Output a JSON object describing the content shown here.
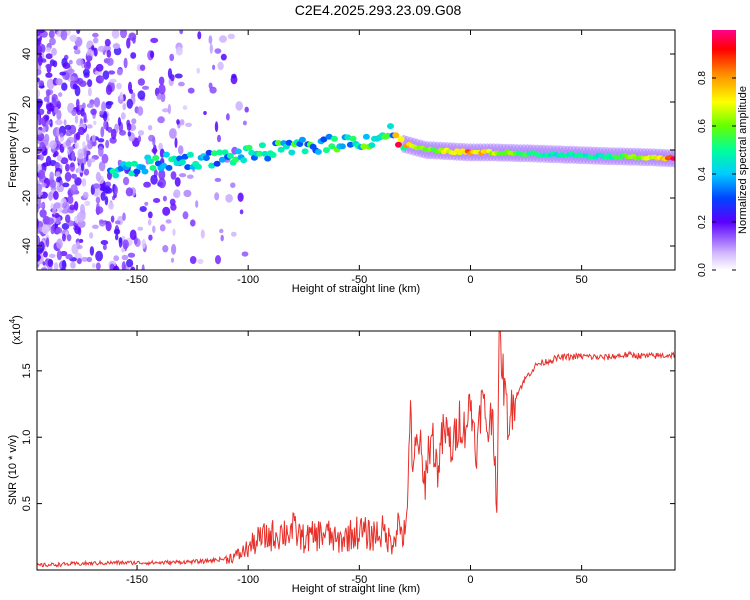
{
  "title": "C2E4.2025.293.23.09.G08",
  "chart_data": [
    {
      "type": "heatmap",
      "xlabel": "Height of straight line (km)",
      "ylabel": "Frequency (Hz)",
      "xlim": [
        -195,
        92
      ],
      "ylim": [
        -50,
        50
      ],
      "xticks": [
        -150,
        -100,
        -50,
        0,
        50
      ],
      "yticks": [
        -40,
        -20,
        0,
        20,
        40
      ],
      "colorbar": {
        "label": "Normalized spectral amplitude",
        "range": [
          0,
          1
        ],
        "ticks": [
          0.0,
          0.2,
          0.4,
          0.6,
          0.8
        ],
        "tick_labels": [
          "0.0",
          "0.2",
          "0.4",
          "0.6",
          "0.8"
        ]
      },
      "ridge": [
        {
          "x": -162,
          "y": -9.5,
          "amp": 0.45
        },
        {
          "x": -140,
          "y": -5,
          "amp": 0.45
        },
        {
          "x": -120,
          "y": -4,
          "amp": 0.45
        },
        {
          "x": -100,
          "y": -2,
          "amp": 0.45
        },
        {
          "x": -80,
          "y": 1,
          "amp": 0.5
        },
        {
          "x": -60,
          "y": 3,
          "amp": 0.5
        },
        {
          "x": -45,
          "y": 4,
          "amp": 0.55
        },
        {
          "x": -35,
          "y": 8,
          "amp": 0.5
        },
        {
          "x": -32,
          "y": 3,
          "amp": 0.85
        },
        {
          "x": -20,
          "y": 0,
          "amp": 0.6
        },
        {
          "x": 0,
          "y": -1,
          "amp": 0.85
        },
        {
          "x": 10,
          "y": -1,
          "amp": 0.7
        },
        {
          "x": 30,
          "y": -1.5,
          "amp": 0.5
        },
        {
          "x": 60,
          "y": -2.5,
          "amp": 0.5
        },
        {
          "x": 80,
          "y": -3,
          "amp": 0.7
        },
        {
          "x": 92,
          "y": -3.5,
          "amp": 0.95
        }
      ]
    },
    {
      "type": "line",
      "xlabel": "Height of straight line (km)",
      "ylabel": "SNR (10 * v/v)",
      "y_scale_label": "(x10",
      "y_scale_exp": "4",
      "y_scale_close": ")",
      "xlim": [
        -195,
        92
      ],
      "ylim": [
        0,
        1.8
      ],
      "xticks": [
        -150,
        -100,
        -50,
        0,
        50
      ],
      "yticks": [
        0.5,
        1.0,
        1.5
      ],
      "ytick_labels": [
        "0.5",
        "1.0",
        "1.5"
      ],
      "series": [
        {
          "name": "SNR",
          "color": "#e8302a",
          "x": [
            -195,
            -180,
            -160,
            -140,
            -120,
            -110,
            -104,
            -100,
            -95,
            -90,
            -85,
            -80,
            -75,
            -70,
            -65,
            -60,
            -55,
            -50,
            -45,
            -40,
            -37,
            -35,
            -33,
            -31,
            -29,
            -28,
            -27,
            -26,
            -25,
            -23,
            -21,
            -19,
            -17,
            -15,
            -12,
            -10,
            -8,
            -5,
            -3,
            0,
            3,
            5,
            8,
            10,
            12,
            13,
            15,
            17,
            20,
            25,
            30,
            40,
            50,
            60,
            70,
            80,
            92
          ],
          "y": [
            0.02,
            0.03,
            0.04,
            0.04,
            0.05,
            0.07,
            0.1,
            0.14,
            0.2,
            0.22,
            0.24,
            0.26,
            0.2,
            0.22,
            0.24,
            0.18,
            0.22,
            0.25,
            0.22,
            0.25,
            0.2,
            0.18,
            0.3,
            0.25,
            0.2,
            0.8,
            1.25,
            0.6,
            0.9,
            1.0,
            0.6,
            0.9,
            1.0,
            0.75,
            1.05,
            1.0,
            0.9,
            1.15,
            1.05,
            1.25,
            0.9,
            1.3,
            1.05,
            1.2,
            0.5,
            1.8,
            1.4,
            1.1,
            1.3,
            1.45,
            1.55,
            1.6,
            1.61,
            1.6,
            1.62,
            1.61,
            1.62
          ]
        }
      ]
    }
  ]
}
